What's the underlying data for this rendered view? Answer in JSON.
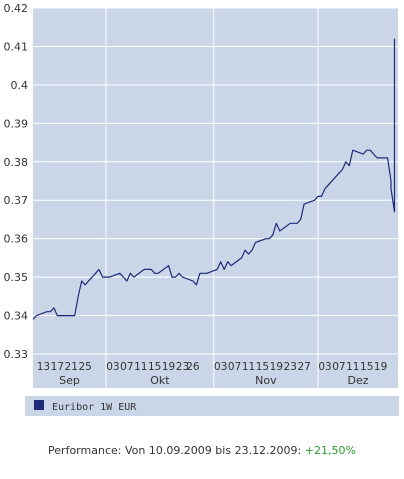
{
  "colors": {
    "plot_bg": "#cad6e8",
    "frame": "#ffffff",
    "line": "#1f2a78",
    "grid": "#ffffff",
    "tick_text": "#333333",
    "positive": "#2a9a2a"
  },
  "chart_data": {
    "type": "line",
    "title": "",
    "xlabel": "",
    "ylabel": "",
    "ylim": [
      0.33,
      0.42
    ],
    "yticks": [
      0.33,
      0.34,
      0.35,
      0.36,
      0.37,
      0.38,
      0.39,
      0.4,
      0.41,
      0.42
    ],
    "ytick_labels": [
      "0.33",
      "0.34",
      "0.35",
      "0.36",
      "0.37",
      "0.38",
      "0.39",
      "0.4",
      "0.41",
      "0.42"
    ],
    "xlim": [
      "2009-09-10",
      "2009-12-23"
    ],
    "x_day_ticks": [
      {
        "date": "2009-09-13",
        "label": "13"
      },
      {
        "date": "2009-09-17",
        "label": "17"
      },
      {
        "date": "2009-09-21",
        "label": "21"
      },
      {
        "date": "2009-09-25",
        "label": "25"
      },
      {
        "date": "2009-10-03",
        "label": "03"
      },
      {
        "date": "2009-10-07",
        "label": "07"
      },
      {
        "date": "2009-10-11",
        "label": "11"
      },
      {
        "date": "2009-10-15",
        "label": "15"
      },
      {
        "date": "2009-10-19",
        "label": "19"
      },
      {
        "date": "2009-10-23",
        "label": "23"
      },
      {
        "date": "2009-10-26",
        "label": "26"
      },
      {
        "date": "2009-11-03",
        "label": "03"
      },
      {
        "date": "2009-11-07",
        "label": "07"
      },
      {
        "date": "2009-11-11",
        "label": "11"
      },
      {
        "date": "2009-11-15",
        "label": "15"
      },
      {
        "date": "2009-11-19",
        "label": "19"
      },
      {
        "date": "2009-11-23",
        "label": "23"
      },
      {
        "date": "2009-11-27",
        "label": "27"
      },
      {
        "date": "2009-12-03",
        "label": "03"
      },
      {
        "date": "2009-12-07",
        "label": "07"
      },
      {
        "date": "2009-12-11",
        "label": "11"
      },
      {
        "date": "2009-12-15",
        "label": "15"
      },
      {
        "date": "2009-12-19",
        "label": "19"
      }
    ],
    "x_months": [
      {
        "start": "2009-09-10",
        "end": "2009-09-30",
        "label": "Sep"
      },
      {
        "start": "2009-10-01",
        "end": "2009-10-31",
        "label": "Okt"
      },
      {
        "start": "2009-11-01",
        "end": "2009-11-30",
        "label": "Nov"
      },
      {
        "start": "2009-12-01",
        "end": "2009-12-23",
        "label": "Dez"
      }
    ],
    "grid": true,
    "legend": "bottom-left",
    "series": [
      {
        "name": "Euribor 1W EUR",
        "points": [
          [
            "2009-09-10",
            0.339
          ],
          [
            "2009-09-11",
            0.34
          ],
          [
            "2009-09-14",
            0.341
          ],
          [
            "2009-09-15",
            0.341
          ],
          [
            "2009-09-16",
            0.342
          ],
          [
            "2009-09-17",
            0.34
          ],
          [
            "2009-09-18",
            0.34
          ],
          [
            "2009-09-21",
            0.34
          ],
          [
            "2009-09-22",
            0.34
          ],
          [
            "2009-09-23",
            0.345
          ],
          [
            "2009-09-24",
            0.349
          ],
          [
            "2009-09-25",
            0.348
          ],
          [
            "2009-09-28",
            0.351
          ],
          [
            "2009-09-29",
            0.352
          ],
          [
            "2009-09-30",
            0.35
          ],
          [
            "2009-10-01",
            0.35
          ],
          [
            "2009-10-02",
            0.35
          ],
          [
            "2009-10-05",
            0.351
          ],
          [
            "2009-10-06",
            0.35
          ],
          [
            "2009-10-07",
            0.349
          ],
          [
            "2009-10-08",
            0.351
          ],
          [
            "2009-10-09",
            0.35
          ],
          [
            "2009-10-12",
            0.352
          ],
          [
            "2009-10-13",
            0.352
          ],
          [
            "2009-10-14",
            0.352
          ],
          [
            "2009-10-15",
            0.351
          ],
          [
            "2009-10-16",
            0.351
          ],
          [
            "2009-10-19",
            0.353
          ],
          [
            "2009-10-20",
            0.35
          ],
          [
            "2009-10-21",
            0.35
          ],
          [
            "2009-10-22",
            0.351
          ],
          [
            "2009-10-23",
            0.35
          ],
          [
            "2009-10-26",
            0.349
          ],
          [
            "2009-10-27",
            0.348
          ],
          [
            "2009-10-28",
            0.351
          ],
          [
            "2009-10-29",
            0.351
          ],
          [
            "2009-10-30",
            0.351
          ],
          [
            "2009-11-02",
            0.352
          ],
          [
            "2009-11-03",
            0.354
          ],
          [
            "2009-11-04",
            0.352
          ],
          [
            "2009-11-05",
            0.354
          ],
          [
            "2009-11-06",
            0.353
          ],
          [
            "2009-11-09",
            0.355
          ],
          [
            "2009-11-10",
            0.357
          ],
          [
            "2009-11-11",
            0.356
          ],
          [
            "2009-11-12",
            0.357
          ],
          [
            "2009-11-13",
            0.359
          ],
          [
            "2009-11-16",
            0.36
          ],
          [
            "2009-11-17",
            0.36
          ],
          [
            "2009-11-18",
            0.361
          ],
          [
            "2009-11-19",
            0.364
          ],
          [
            "2009-11-20",
            0.362
          ],
          [
            "2009-11-23",
            0.364
          ],
          [
            "2009-11-24",
            0.364
          ],
          [
            "2009-11-25",
            0.364
          ],
          [
            "2009-11-26",
            0.365
          ],
          [
            "2009-11-27",
            0.369
          ],
          [
            "2009-11-30",
            0.37
          ],
          [
            "2009-12-01",
            0.371
          ],
          [
            "2009-12-02",
            0.371
          ],
          [
            "2009-12-03",
            0.373
          ],
          [
            "2009-12-04",
            0.374
          ],
          [
            "2009-12-07",
            0.377
          ],
          [
            "2009-12-08",
            0.378
          ],
          [
            "2009-12-09",
            0.38
          ],
          [
            "2009-12-10",
            0.379
          ],
          [
            "2009-12-11",
            0.383
          ],
          [
            "2009-12-14",
            0.382
          ],
          [
            "2009-12-15",
            0.383
          ],
          [
            "2009-12-16",
            0.383
          ],
          [
            "2009-12-17",
            0.382
          ],
          [
            "2009-12-18",
            0.381
          ],
          [
            "2009-12-19",
            0.381
          ],
          [
            "2009-12-20",
            0.381
          ],
          [
            "2009-12-21",
            0.381
          ],
          [
            "2009-12-22",
            0.375
          ],
          [
            "2009-12-22",
            0.373
          ],
          [
            "2009-12-23",
            0.367
          ],
          [
            "2009-12-23",
            0.405
          ],
          [
            "2009-12-23",
            0.412
          ]
        ]
      }
    ]
  },
  "footer": {
    "performance_label": "Performance: Von 10.09.2009 bis 23.12.2009:",
    "performance_value": "+21,50%"
  }
}
